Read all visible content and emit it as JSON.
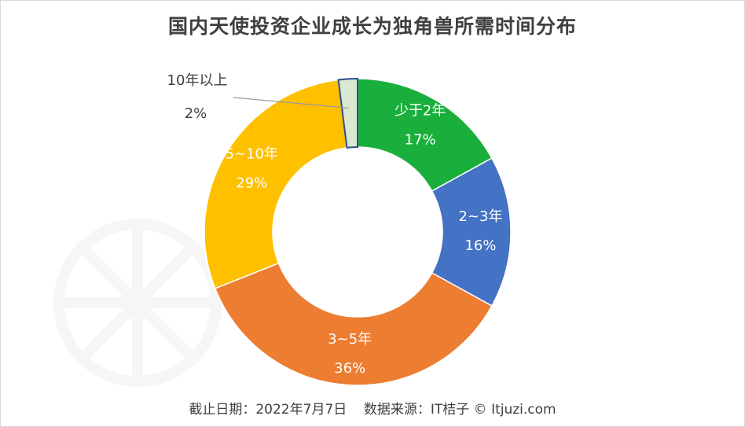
{
  "chart_data": {
    "type": "pie",
    "variant": "donut",
    "title": "国内天使投资企业成长为独角兽所需时间分布",
    "slices": [
      {
        "label": "少于2年",
        "value": 17,
        "value_text": "17%",
        "color": "#1aaf3c"
      },
      {
        "label": "2~3年",
        "value": 16,
        "value_text": "16%",
        "color": "#4472c4"
      },
      {
        "label": "3~5年",
        "value": 36,
        "value_text": "36%",
        "color": "#ed7d31"
      },
      {
        "label": "5~10年",
        "value": 29,
        "value_text": "29%",
        "color": "#ffc000"
      },
      {
        "label": "10年以上",
        "value": 2,
        "value_text": "2%",
        "color": "#d9e8d0"
      }
    ],
    "footer": "截止日期：2022年7月7日    数据来源：IT桔子 © Itjuzi.com"
  }
}
